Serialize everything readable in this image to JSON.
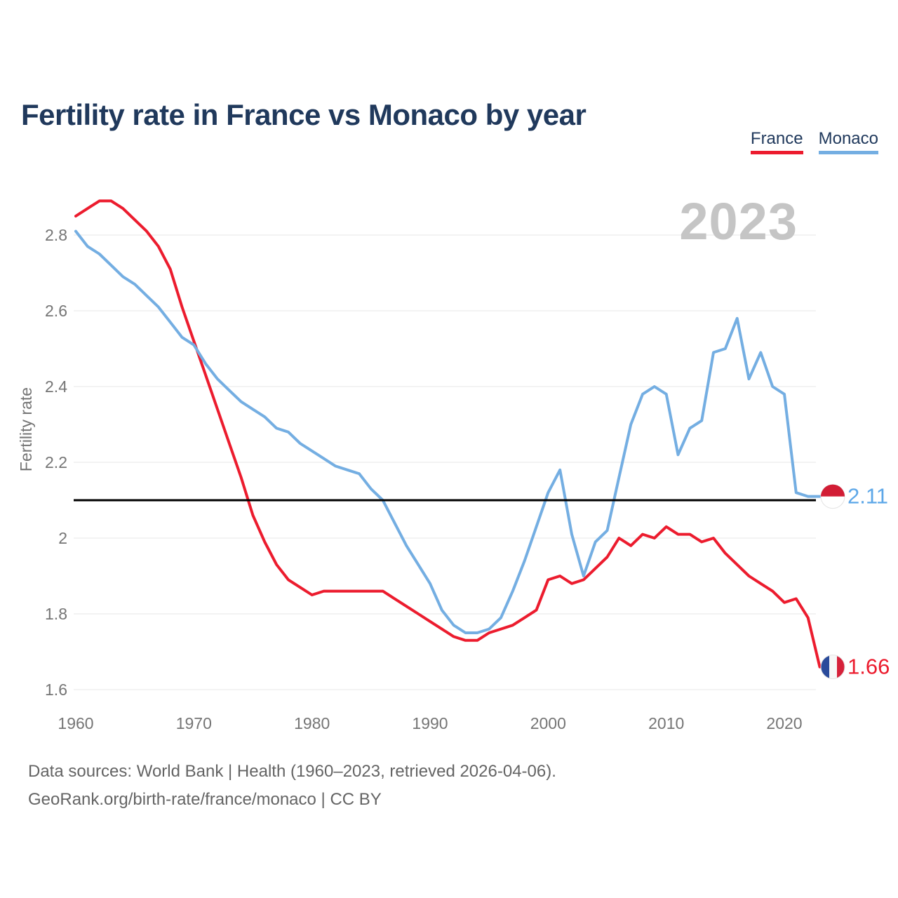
{
  "header": {
    "title": "Fertility rate in France vs Monaco by year"
  },
  "legend": {
    "items": [
      {
        "label": "France",
        "color": "#ec1c2e"
      },
      {
        "label": "Monaco",
        "color": "#74aee2"
      }
    ]
  },
  "watermark": "2023",
  "chart_data": {
    "type": "line",
    "title": "Fertility rate in France vs Monaco by year",
    "xlabel": "",
    "ylabel": "Fertility rate",
    "x_range": [
      1960,
      2023
    ],
    "ylim": [
      1.55,
      2.95
    ],
    "grid": "horizontal",
    "legend_position": "top-right",
    "yticks": [
      {
        "value": 1.6,
        "label": "1.6"
      },
      {
        "value": 1.8,
        "label": "1.8"
      },
      {
        "value": 2.0,
        "label": "2"
      },
      {
        "value": 2.2,
        "label": "2.2"
      },
      {
        "value": 2.4,
        "label": "2.4"
      },
      {
        "value": 2.6,
        "label": "2.6"
      },
      {
        "value": 2.8,
        "label": "2.8"
      }
    ],
    "xticks": [
      {
        "value": 1960,
        "label": "1960"
      },
      {
        "value": 1970,
        "label": "1970"
      },
      {
        "value": 1980,
        "label": "1980"
      },
      {
        "value": 1990,
        "label": "1990"
      },
      {
        "value": 2000,
        "label": "2000"
      },
      {
        "value": 2010,
        "label": "2010"
      },
      {
        "value": 2020,
        "label": "2020"
      }
    ],
    "years": [
      1960,
      1961,
      1962,
      1963,
      1964,
      1965,
      1966,
      1967,
      1968,
      1969,
      1970,
      1971,
      1972,
      1973,
      1974,
      1975,
      1976,
      1977,
      1978,
      1979,
      1980,
      1981,
      1982,
      1983,
      1984,
      1985,
      1986,
      1987,
      1988,
      1989,
      1990,
      1991,
      1992,
      1993,
      1994,
      1995,
      1996,
      1997,
      1998,
      1999,
      2000,
      2001,
      2002,
      2003,
      2004,
      2005,
      2006,
      2007,
      2008,
      2009,
      2010,
      2011,
      2012,
      2013,
      2014,
      2015,
      2016,
      2017,
      2018,
      2019,
      2020,
      2021,
      2022,
      2023
    ],
    "series": [
      {
        "name": "France",
        "color": "#ec1c2e",
        "values": [
          2.85,
          2.87,
          2.89,
          2.89,
          2.87,
          2.84,
          2.81,
          2.77,
          2.71,
          2.61,
          2.52,
          2.43,
          2.34,
          2.25,
          2.16,
          2.06,
          1.99,
          1.93,
          1.89,
          1.87,
          1.85,
          1.86,
          1.86,
          1.86,
          1.86,
          1.86,
          1.86,
          1.84,
          1.82,
          1.8,
          1.78,
          1.76,
          1.74,
          1.73,
          1.73,
          1.75,
          1.76,
          1.77,
          1.79,
          1.81,
          1.89,
          1.9,
          1.88,
          1.89,
          1.92,
          1.95,
          2.0,
          1.98,
          2.01,
          2.0,
          2.03,
          2.01,
          2.01,
          1.99,
          2.0,
          1.96,
          1.93,
          1.9,
          1.88,
          1.86,
          1.83,
          1.84,
          1.79,
          1.66
        ]
      },
      {
        "name": "Monaco",
        "color": "#74aee2",
        "values": [
          2.81,
          2.77,
          2.75,
          2.72,
          2.69,
          2.67,
          2.64,
          2.61,
          2.57,
          2.53,
          2.51,
          2.46,
          2.42,
          2.39,
          2.36,
          2.34,
          2.32,
          2.29,
          2.28,
          2.25,
          2.23,
          2.21,
          2.19,
          2.18,
          2.17,
          2.13,
          2.1,
          2.04,
          1.98,
          1.93,
          1.88,
          1.81,
          1.77,
          1.75,
          1.75,
          1.76,
          1.79,
          1.86,
          1.94,
          2.03,
          2.12,
          2.18,
          2.01,
          1.9,
          1.99,
          2.02,
          2.16,
          2.3,
          2.38,
          2.4,
          2.38,
          2.22,
          2.29,
          2.31,
          2.49,
          2.5,
          2.58,
          2.42,
          2.49,
          2.4,
          2.38,
          2.12,
          2.11,
          2.11
        ]
      }
    ],
    "reference_line": {
      "value": 2.1,
      "color": "#000000"
    },
    "end_labels": [
      {
        "series": "Monaco",
        "text": "2.11",
        "value": 2.11,
        "color": "#5da7e8"
      },
      {
        "series": "France",
        "text": "1.66",
        "value": 1.66,
        "color": "#ec1c2e"
      }
    ]
  },
  "footer": {
    "line1": "Data sources: World Bank | Health (1960–2023, retrieved 2026-04-06).",
    "line2": "GeoRank.org/birth-rate/france/monaco | CC BY"
  }
}
